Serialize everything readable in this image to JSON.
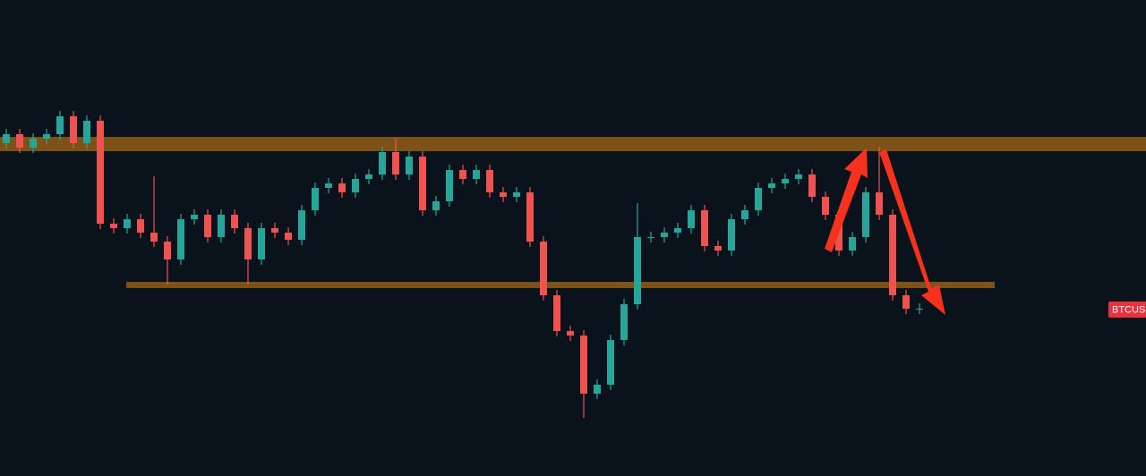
{
  "chart_data": {
    "type": "candlestick",
    "ylim": [
      0,
      532
    ],
    "up_color": "#26a69a",
    "down_color": "#ef5350",
    "open": [
      372,
      382,
      367,
      377,
      382,
      402,
      372,
      397,
      282,
      277,
      287,
      272,
      262,
      242,
      287,
      292,
      267,
      292,
      277,
      242,
      277,
      272,
      264,
      297,
      322,
      327,
      317,
      332,
      337,
      362,
      337,
      357,
      297,
      307,
      342,
      332,
      342,
      317,
      312,
      317,
      262,
      202,
      162,
      157,
      92,
      102,
      152,
      192,
      267,
      267,
      272,
      277,
      297,
      257,
      252,
      287,
      297,
      322,
      327,
      332,
      337,
      312,
      292,
      252,
      267,
      317,
      292,
      202,
      187
    ],
    "high": [
      388,
      388,
      383,
      388,
      408,
      408,
      403,
      403,
      288,
      293,
      293,
      335,
      268,
      293,
      298,
      298,
      298,
      298,
      283,
      283,
      283,
      278,
      303,
      328,
      333,
      333,
      338,
      343,
      368,
      378,
      363,
      363,
      313,
      348,
      348,
      348,
      348,
      323,
      323,
      323,
      268,
      208,
      168,
      163,
      108,
      158,
      198,
      305,
      273,
      278,
      283,
      303,
      303,
      263,
      293,
      303,
      328,
      333,
      338,
      343,
      343,
      318,
      298,
      273,
      323,
      368,
      298,
      208,
      193
    ],
    "low": [
      366,
      361,
      361,
      371,
      376,
      366,
      366,
      276,
      271,
      271,
      266,
      256,
      214,
      236,
      281,
      261,
      261,
      271,
      214,
      236,
      266,
      258,
      258,
      291,
      316,
      311,
      311,
      326,
      331,
      331,
      331,
      291,
      291,
      301,
      326,
      326,
      311,
      306,
      306,
      256,
      196,
      156,
      151,
      65,
      86,
      96,
      146,
      186,
      261,
      261,
      266,
      271,
      251,
      246,
      246,
      281,
      291,
      316,
      321,
      326,
      306,
      286,
      246,
      246,
      261,
      286,
      196,
      181,
      181
    ],
    "close": [
      382,
      367,
      377,
      382,
      402,
      372,
      397,
      282,
      277,
      287,
      272,
      262,
      242,
      287,
      292,
      267,
      292,
      277,
      242,
      277,
      272,
      264,
      297,
      322,
      327,
      317,
      332,
      337,
      362,
      337,
      357,
      297,
      307,
      342,
      332,
      342,
      317,
      312,
      317,
      262,
      202,
      162,
      157,
      92,
      102,
      152,
      192,
      267,
      267,
      272,
      277,
      297,
      257,
      252,
      287,
      297,
      322,
      327,
      332,
      337,
      312,
      292,
      252,
      267,
      317,
      292,
      202,
      187,
      187
    ],
    "zones": [
      {
        "low": 363,
        "high": 379,
        "color": "#8a5a17"
      },
      {
        "low": 210,
        "high": 217,
        "color": "#8a5a17"
      }
    ],
    "price_label": "BTCUS",
    "price_label_color": "#e8323f"
  }
}
